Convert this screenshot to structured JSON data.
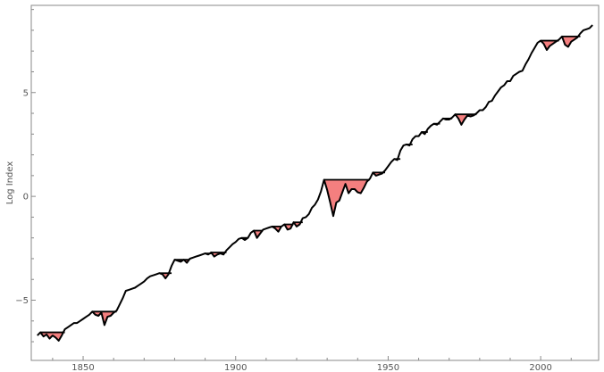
{
  "chart_data": {
    "type": "area",
    "title": "",
    "xlabel": "",
    "ylabel": "Log Index",
    "xlim": [
      1833,
      2019
    ],
    "ylim": [
      -7.9,
      9.2
    ],
    "x_ticks": [
      1850,
      1900,
      1950,
      2000
    ],
    "x_tick_labels": [
      "1850",
      "1900",
      "1950",
      "2000"
    ],
    "y_ticks": [
      -5,
      0,
      5
    ],
    "y_tick_labels": [
      "−5",
      "0",
      "5"
    ],
    "grid": false,
    "colors": {
      "line": "#000000",
      "drawdown_fill": "#f47f7f",
      "frame": "#8a8a8a"
    },
    "series": [
      {
        "role": "log-index",
        "points": [
          [
            1835,
            -6.7
          ],
          [
            1836,
            -6.55
          ],
          [
            1837,
            -6.75
          ],
          [
            1838,
            -6.65
          ],
          [
            1839,
            -6.85
          ],
          [
            1840,
            -6.7
          ],
          [
            1841,
            -6.8
          ],
          [
            1842,
            -6.95
          ],
          [
            1843,
            -6.7
          ],
          [
            1844,
            -6.4
          ],
          [
            1845,
            -6.3
          ],
          [
            1846,
            -6.2
          ],
          [
            1847,
            -6.1
          ],
          [
            1848,
            -6.1
          ],
          [
            1849,
            -6.0
          ],
          [
            1850,
            -5.9
          ],
          [
            1851,
            -5.8
          ],
          [
            1852,
            -5.7
          ],
          [
            1853,
            -5.55
          ],
          [
            1854,
            -5.7
          ],
          [
            1855,
            -5.75
          ],
          [
            1856,
            -5.6
          ],
          [
            1857,
            -6.2
          ],
          [
            1858,
            -5.8
          ],
          [
            1859,
            -5.75
          ],
          [
            1860,
            -5.6
          ],
          [
            1861,
            -5.5
          ],
          [
            1862,
            -5.2
          ],
          [
            1863,
            -4.9
          ],
          [
            1864,
            -4.55
          ],
          [
            1865,
            -4.5
          ],
          [
            1866,
            -4.45
          ],
          [
            1867,
            -4.4
          ],
          [
            1868,
            -4.3
          ],
          [
            1869,
            -4.2
          ],
          [
            1870,
            -4.1
          ],
          [
            1871,
            -3.95
          ],
          [
            1872,
            -3.85
          ],
          [
            1873,
            -3.8
          ],
          [
            1874,
            -3.75
          ],
          [
            1875,
            -3.7
          ],
          [
            1876,
            -3.75
          ],
          [
            1877,
            -3.95
          ],
          [
            1878,
            -3.75
          ],
          [
            1879,
            -3.35
          ],
          [
            1880,
            -3.05
          ],
          [
            1881,
            -3.1
          ],
          [
            1882,
            -3.15
          ],
          [
            1883,
            -3.05
          ],
          [
            1884,
            -3.2
          ],
          [
            1885,
            -3.0
          ],
          [
            1886,
            -2.95
          ],
          [
            1887,
            -2.9
          ],
          [
            1888,
            -2.85
          ],
          [
            1889,
            -2.8
          ],
          [
            1890,
            -2.75
          ],
          [
            1891,
            -2.8
          ],
          [
            1892,
            -2.7
          ],
          [
            1893,
            -2.9
          ],
          [
            1894,
            -2.8
          ],
          [
            1895,
            -2.75
          ],
          [
            1896,
            -2.8
          ],
          [
            1897,
            -2.6
          ],
          [
            1898,
            -2.45
          ],
          [
            1899,
            -2.3
          ],
          [
            1900,
            -2.2
          ],
          [
            1901,
            -2.05
          ],
          [
            1902,
            -2.0
          ],
          [
            1903,
            -2.1
          ],
          [
            1904,
            -2.0
          ],
          [
            1905,
            -1.75
          ],
          [
            1906,
            -1.65
          ],
          [
            1907,
            -2.0
          ],
          [
            1908,
            -1.8
          ],
          [
            1909,
            -1.6
          ],
          [
            1910,
            -1.55
          ],
          [
            1911,
            -1.5
          ],
          [
            1912,
            -1.45
          ],
          [
            1913,
            -1.55
          ],
          [
            1914,
            -1.7
          ],
          [
            1915,
            -1.45
          ],
          [
            1916,
            -1.35
          ],
          [
            1917,
            -1.6
          ],
          [
            1918,
            -1.55
          ],
          [
            1919,
            -1.25
          ],
          [
            1920,
            -1.45
          ],
          [
            1921,
            -1.35
          ],
          [
            1922,
            -1.05
          ],
          [
            1923,
            -1.0
          ],
          [
            1924,
            -0.85
          ],
          [
            1925,
            -0.55
          ],
          [
            1926,
            -0.4
          ],
          [
            1927,
            -0.15
          ],
          [
            1928,
            0.25
          ],
          [
            1929,
            0.8
          ],
          [
            1930,
            0.3
          ],
          [
            1931,
            -0.3
          ],
          [
            1932,
            -0.95
          ],
          [
            1933,
            -0.3
          ],
          [
            1934,
            -0.2
          ],
          [
            1935,
            0.2
          ],
          [
            1936,
            0.6
          ],
          [
            1937,
            0.15
          ],
          [
            1938,
            0.35
          ],
          [
            1939,
            0.35
          ],
          [
            1940,
            0.2
          ],
          [
            1941,
            0.15
          ],
          [
            1942,
            0.4
          ],
          [
            1943,
            0.7
          ],
          [
            1944,
            0.85
          ],
          [
            1945,
            1.15
          ],
          [
            1946,
            1.0
          ],
          [
            1947,
            1.05
          ],
          [
            1948,
            1.1
          ],
          [
            1949,
            1.25
          ],
          [
            1950,
            1.45
          ],
          [
            1951,
            1.65
          ],
          [
            1952,
            1.8
          ],
          [
            1953,
            1.75
          ],
          [
            1954,
            2.2
          ],
          [
            1955,
            2.45
          ],
          [
            1956,
            2.5
          ],
          [
            1957,
            2.45
          ],
          [
            1958,
            2.75
          ],
          [
            1959,
            2.9
          ],
          [
            1960,
            2.9
          ],
          [
            1961,
            3.1
          ],
          [
            1962,
            3.0
          ],
          [
            1963,
            3.25
          ],
          [
            1964,
            3.4
          ],
          [
            1965,
            3.5
          ],
          [
            1966,
            3.45
          ],
          [
            1967,
            3.6
          ],
          [
            1968,
            3.75
          ],
          [
            1969,
            3.7
          ],
          [
            1970,
            3.7
          ],
          [
            1971,
            3.8
          ],
          [
            1972,
            3.95
          ],
          [
            1973,
            3.75
          ],
          [
            1974,
            3.45
          ],
          [
            1975,
            3.7
          ],
          [
            1976,
            3.9
          ],
          [
            1977,
            3.85
          ],
          [
            1978,
            3.9
          ],
          [
            1979,
            4.0
          ],
          [
            1980,
            4.15
          ],
          [
            1981,
            4.15
          ],
          [
            1982,
            4.3
          ],
          [
            1983,
            4.55
          ],
          [
            1984,
            4.6
          ],
          [
            1985,
            4.85
          ],
          [
            1986,
            5.05
          ],
          [
            1987,
            5.25
          ],
          [
            1988,
            5.35
          ],
          [
            1989,
            5.55
          ],
          [
            1990,
            5.55
          ],
          [
            1991,
            5.8
          ],
          [
            1992,
            5.9
          ],
          [
            1993,
            6.0
          ],
          [
            1994,
            6.05
          ],
          [
            1995,
            6.35
          ],
          [
            1996,
            6.6
          ],
          [
            1997,
            6.9
          ],
          [
            1998,
            7.15
          ],
          [
            1999,
            7.4
          ],
          [
            2000,
            7.5
          ],
          [
            2001,
            7.35
          ],
          [
            2002,
            7.05
          ],
          [
            2003,
            7.25
          ],
          [
            2004,
            7.35
          ],
          [
            2005,
            7.45
          ],
          [
            2006,
            7.55
          ],
          [
            2007,
            7.7
          ],
          [
            2008,
            7.3
          ],
          [
            2009,
            7.2
          ],
          [
            2010,
            7.45
          ],
          [
            2011,
            7.55
          ],
          [
            2012,
            7.65
          ],
          [
            2013,
            7.85
          ],
          [
            2014,
            8.0
          ],
          [
            2015,
            8.05
          ],
          [
            2016,
            8.1
          ],
          [
            2017,
            8.25
          ]
        ]
      }
    ]
  }
}
